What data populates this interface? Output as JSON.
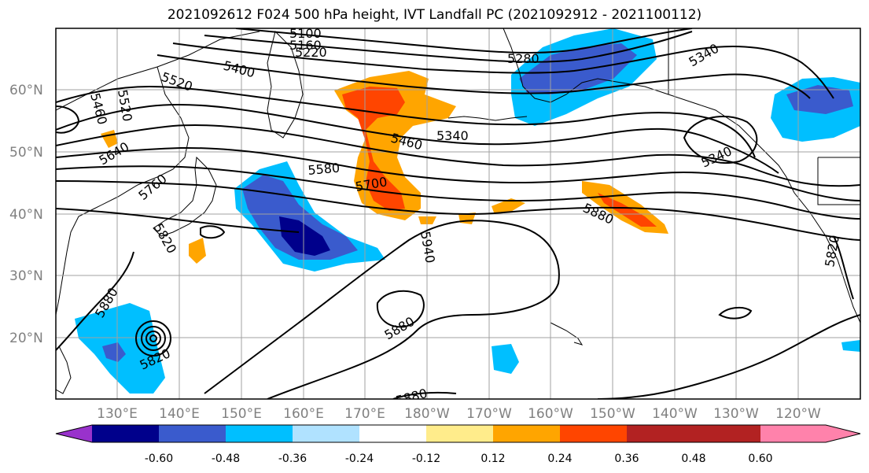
{
  "title": "2021092612 F024 500 hPa height, IVT Landfall PC (2021092912 - 2021100112)",
  "map": {
    "lat_labels": [
      "60°N",
      "50°N",
      "40°N",
      "30°N",
      "20°N"
    ],
    "lon_labels": [
      "130°E",
      "140°E",
      "150°E",
      "160°E",
      "170°E",
      "180°W",
      "170°W",
      "160°W",
      "150°W",
      "140°W",
      "130°W",
      "120°W"
    ],
    "height_contour_labels": [
      "5100",
      "5160",
      "5220",
      "5280",
      "5340",
      "5340",
      "5340",
      "5400",
      "5460",
      "5460",
      "5520",
      "5520",
      "5580",
      "5640",
      "5700",
      "5760",
      "5820",
      "5820",
      "5820",
      "5880",
      "5880",
      "5880",
      "5880",
      "5940"
    ],
    "grid": true
  },
  "colorbar": {
    "tick_labels": [
      "-0.60",
      "-0.48",
      "-0.36",
      "-0.24",
      "-0.12",
      "0.12",
      "0.24",
      "0.36",
      "0.48",
      "0.60"
    ],
    "colors": [
      "#9932cc",
      "#00008b",
      "#3a5bcd",
      "#00bfff",
      "#b0e2ff",
      "#ffffff",
      "#ffec8b",
      "#ffa500",
      "#ff4500",
      "#b22222",
      "#ff82ab"
    ]
  }
}
